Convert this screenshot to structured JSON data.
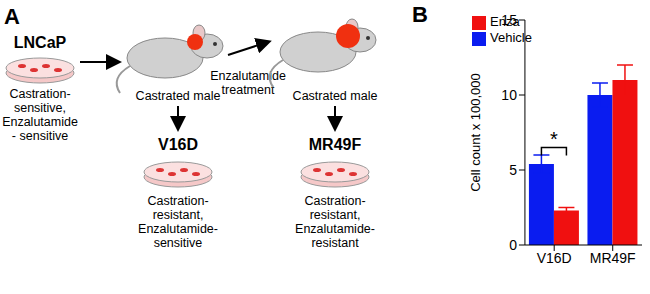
{
  "diagram": {
    "label": "A",
    "start": {
      "name": "LNCaP",
      "description": [
        "Castration-",
        "sensitive,",
        "Enzalutamide",
        "- sensitive"
      ]
    },
    "host_1": "Castrated male",
    "treatment": [
      "Enzalutamide",
      "treatment"
    ],
    "host_2": "Castrated male",
    "line_1": {
      "name": "V16D",
      "description": [
        "Castration-",
        "resistant,",
        "Enzalutamide-",
        "sensitive"
      ]
    },
    "line_2": {
      "name": "MR49F",
      "description": [
        "Castration-",
        "resistant,",
        "Enzalutamide-",
        "resistant"
      ]
    }
  },
  "chart_data": {
    "panel_label": "B",
    "type": "bar",
    "y_label": "Cell count x 100,000",
    "categories": [
      "V16D",
      "MR49F"
    ],
    "series": [
      {
        "name": "Vehicle",
        "color": "#0a1cf0",
        "values": [
          5.4,
          10.0
        ],
        "errors": [
          0.6,
          0.8
        ]
      },
      {
        "name": "Enza",
        "color": "#f01010",
        "values": [
          2.3,
          11.0
        ],
        "errors": [
          0.2,
          1.0
        ]
      }
    ],
    "ylim": [
      0,
      15
    ],
    "yticks": [
      0,
      5,
      10,
      15
    ],
    "legend": "upper left",
    "annotations": [
      {
        "text": "*",
        "category": "V16D",
        "y": 6.5
      }
    ]
  }
}
